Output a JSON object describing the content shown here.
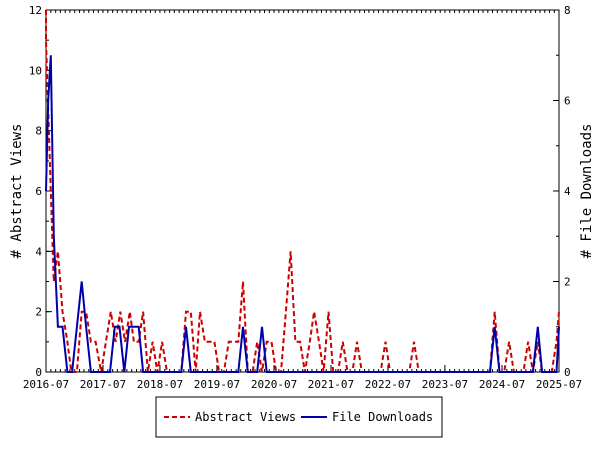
{
  "chart_data": {
    "type": "line",
    "title": "",
    "x_tick_labels": [
      "2016-07",
      "2017-07",
      "2018-07",
      "2019-07",
      "2020-07",
      "2021-07",
      "2022-07",
      "2023-07",
      "2024-07",
      "2025-07"
    ],
    "y_left": {
      "label": "# Abstract Views",
      "ticks": [
        0,
        2,
        4,
        6,
        8,
        10,
        12
      ],
      "range": [
        0,
        12
      ]
    },
    "y_right": {
      "label": "# File Downloads",
      "ticks": [
        0,
        2,
        4,
        6,
        8
      ],
      "range": [
        0,
        8
      ]
    },
    "grid": false,
    "legend_position": "bottom-center",
    "series": [
      {
        "name": "Abstract Views",
        "axis": "left",
        "color": "#cc0000",
        "style": "dashed",
        "points": [
          [
            "2016-06-20",
            12
          ],
          [
            "2016-07-01",
            11
          ],
          [
            "2016-08-01",
            6
          ],
          [
            "2016-08-20",
            3
          ],
          [
            "2016-09-15",
            4
          ],
          [
            "2016-10-15",
            2
          ],
          [
            "2016-11-15",
            1
          ],
          [
            "2016-12-10",
            0
          ],
          [
            "2017-01-15",
            0
          ],
          [
            "2017-02-15",
            2
          ],
          [
            "2017-03-15",
            2
          ],
          [
            "2017-04-15",
            1
          ],
          [
            "2017-05-15",
            1
          ],
          [
            "2017-06-20",
            0
          ],
          [
            "2017-07-20",
            1
          ],
          [
            "2017-08-20",
            2
          ],
          [
            "2017-09-20",
            1
          ],
          [
            "2017-10-20",
            2
          ],
          [
            "2017-11-20",
            1
          ],
          [
            "2017-12-20",
            2
          ],
          [
            "2018-01-15",
            1
          ],
          [
            "2018-02-15",
            1
          ],
          [
            "2018-03-15",
            2
          ],
          [
            "2018-04-15",
            0
          ],
          [
            "2018-05-15",
            1
          ],
          [
            "2018-06-15",
            0
          ],
          [
            "2018-07-15",
            1
          ],
          [
            "2018-08-15",
            0
          ],
          [
            "2018-09-15",
            0
          ],
          [
            "2018-10-15",
            0
          ],
          [
            "2018-11-15",
            0
          ],
          [
            "2018-12-15",
            2
          ],
          [
            "2019-01-15",
            2
          ],
          [
            "2019-02-15",
            0
          ],
          [
            "2019-03-15",
            2
          ],
          [
            "2019-04-15",
            1
          ],
          [
            "2019-05-15",
            1
          ],
          [
            "2019-06-15",
            1
          ],
          [
            "2019-07-15",
            0
          ],
          [
            "2019-08-15",
            0
          ],
          [
            "2019-09-15",
            1
          ],
          [
            "2019-10-15",
            1
          ],
          [
            "2019-11-15",
            1
          ],
          [
            "2019-12-15",
            3
          ],
          [
            "2020-01-15",
            0
          ],
          [
            "2020-02-15",
            0
          ],
          [
            "2020-03-15",
            1
          ],
          [
            "2020-04-15",
            0
          ],
          [
            "2020-05-15",
            1
          ],
          [
            "2020-06-15",
            1
          ],
          [
            "2020-07-15",
            0
          ],
          [
            "2020-08-15",
            0
          ],
          [
            "2020-09-15",
            2
          ],
          [
            "2020-10-15",
            4
          ],
          [
            "2020-11-15",
            1
          ],
          [
            "2020-12-15",
            1
          ],
          [
            "2021-01-15",
            0
          ],
          [
            "2021-02-15",
            1
          ],
          [
            "2021-03-15",
            2
          ],
          [
            "2021-04-15",
            1
          ],
          [
            "2021-05-15",
            0
          ],
          [
            "2021-06-15",
            2
          ],
          [
            "2021-07-15",
            0
          ],
          [
            "2021-08-15",
            0
          ],
          [
            "2021-09-15",
            1
          ],
          [
            "2021-10-15",
            0
          ],
          [
            "2021-11-15",
            0
          ],
          [
            "2021-12-15",
            1
          ],
          [
            "2022-01-15",
            0
          ],
          [
            "2022-02-15",
            0
          ],
          [
            "2022-03-15",
            0
          ],
          [
            "2022-04-15",
            0
          ],
          [
            "2022-05-15",
            0
          ],
          [
            "2022-06-15",
            1
          ],
          [
            "2022-07-15",
            0
          ],
          [
            "2022-08-15",
            0
          ],
          [
            "2022-09-15",
            0
          ],
          [
            "2022-10-15",
            0
          ],
          [
            "2022-11-15",
            0
          ],
          [
            "2022-12-15",
            1
          ],
          [
            "2023-01-15",
            0
          ],
          [
            "2023-02-15",
            0
          ],
          [
            "2023-03-15",
            0
          ],
          [
            "2023-04-15",
            0
          ],
          [
            "2023-05-15",
            0
          ],
          [
            "2023-06-15",
            0
          ],
          [
            "2023-07-15",
            0
          ],
          [
            "2023-08-15",
            0
          ],
          [
            "2023-09-15",
            0
          ],
          [
            "2023-10-15",
            0
          ],
          [
            "2023-11-15",
            0
          ],
          [
            "2023-12-15",
            0
          ],
          [
            "2024-01-15",
            0
          ],
          [
            "2024-02-15",
            0
          ],
          [
            "2024-03-15",
            0
          ],
          [
            "2024-04-15",
            0
          ],
          [
            "2024-05-15",
            2
          ],
          [
            "2024-06-15",
            0
          ],
          [
            "2024-07-15",
            0
          ],
          [
            "2024-08-15",
            1
          ],
          [
            "2024-09-15",
            0
          ],
          [
            "2024-10-15",
            0
          ],
          [
            "2024-11-15",
            0
          ],
          [
            "2024-12-15",
            1
          ],
          [
            "2025-01-15",
            0
          ],
          [
            "2025-02-15",
            1
          ],
          [
            "2025-03-15",
            0
          ],
          [
            "2025-04-15",
            0
          ],
          [
            "2025-05-15",
            0
          ],
          [
            "2025-06-15",
            1
          ],
          [
            "2025-07-01",
            2
          ]
        ]
      },
      {
        "name": "File Downloads",
        "axis": "right",
        "color": "#0000aa",
        "style": "solid",
        "points": [
          [
            "2016-06-20",
            4
          ],
          [
            "2016-07-15",
            6
          ],
          [
            "2016-08-01",
            7
          ],
          [
            "2016-08-20",
            3
          ],
          [
            "2016-09-15",
            1
          ],
          [
            "2016-10-15",
            1
          ],
          [
            "2016-11-15",
            0
          ],
          [
            "2016-12-15",
            0
          ],
          [
            "2017-01-15",
            1
          ],
          [
            "2017-02-15",
            2
          ],
          [
            "2017-03-15",
            1
          ],
          [
            "2017-04-15",
            0
          ],
          [
            "2017-05-15",
            0
          ],
          [
            "2017-06-15",
            0
          ],
          [
            "2017-07-15",
            0
          ],
          [
            "2017-08-15",
            0
          ],
          [
            "2017-09-15",
            1
          ],
          [
            "2017-10-15",
            1
          ],
          [
            "2017-11-15",
            0
          ],
          [
            "2017-12-15",
            1
          ],
          [
            "2018-01-15",
            1
          ],
          [
            "2018-02-15",
            1
          ],
          [
            "2018-03-15",
            0
          ],
          [
            "2018-04-15",
            0
          ],
          [
            "2018-05-15",
            0
          ],
          [
            "2018-06-15",
            0
          ],
          [
            "2018-07-15",
            0
          ],
          [
            "2018-08-15",
            0
          ],
          [
            "2018-09-15",
            0
          ],
          [
            "2018-10-15",
            0
          ],
          [
            "2018-11-15",
            0
          ],
          [
            "2018-12-15",
            1
          ],
          [
            "2019-01-15",
            0
          ],
          [
            "2019-02-15",
            0
          ],
          [
            "2019-03-15",
            0
          ],
          [
            "2019-04-15",
            0
          ],
          [
            "2019-05-15",
            0
          ],
          [
            "2019-06-15",
            0
          ],
          [
            "2019-07-15",
            0
          ],
          [
            "2019-08-15",
            0
          ],
          [
            "2019-09-15",
            0
          ],
          [
            "2019-10-15",
            0
          ],
          [
            "2019-11-15",
            0
          ],
          [
            "2019-12-15",
            1
          ],
          [
            "2020-01-15",
            0
          ],
          [
            "2020-02-15",
            0
          ],
          [
            "2020-03-15",
            0
          ],
          [
            "2020-04-15",
            1
          ],
          [
            "2020-05-15",
            0
          ],
          [
            "2020-06-15",
            0
          ],
          [
            "2020-07-15",
            0
          ],
          [
            "2020-08-15",
            0
          ],
          [
            "2020-09-15",
            0
          ],
          [
            "2020-10-15",
            0
          ],
          [
            "2020-11-15",
            0
          ],
          [
            "2020-12-15",
            0
          ],
          [
            "2021-06-15",
            0
          ],
          [
            "2022-06-15",
            0
          ],
          [
            "2023-06-15",
            0
          ],
          [
            "2024-01-15",
            0
          ],
          [
            "2024-02-15",
            0
          ],
          [
            "2024-03-15",
            0
          ],
          [
            "2024-04-15",
            0
          ],
          [
            "2024-05-15",
            1
          ],
          [
            "2024-06-15",
            0
          ],
          [
            "2024-07-15",
            0
          ],
          [
            "2024-08-15",
            0
          ],
          [
            "2024-09-15",
            0
          ],
          [
            "2024-10-15",
            0
          ],
          [
            "2024-11-15",
            0
          ],
          [
            "2024-12-15",
            0
          ],
          [
            "2025-01-15",
            0
          ],
          [
            "2025-02-15",
            1
          ],
          [
            "2025-03-15",
            0
          ],
          [
            "2025-04-15",
            0
          ],
          [
            "2025-05-15",
            0
          ],
          [
            "2025-06-15",
            0
          ],
          [
            "2025-07-01",
            1
          ]
        ]
      }
    ]
  },
  "legend": {
    "items": [
      {
        "label": "Abstract Views",
        "color": "#cc0000",
        "style": "dashed"
      },
      {
        "label": "File Downloads",
        "color": "#0000aa",
        "style": "solid"
      }
    ]
  }
}
